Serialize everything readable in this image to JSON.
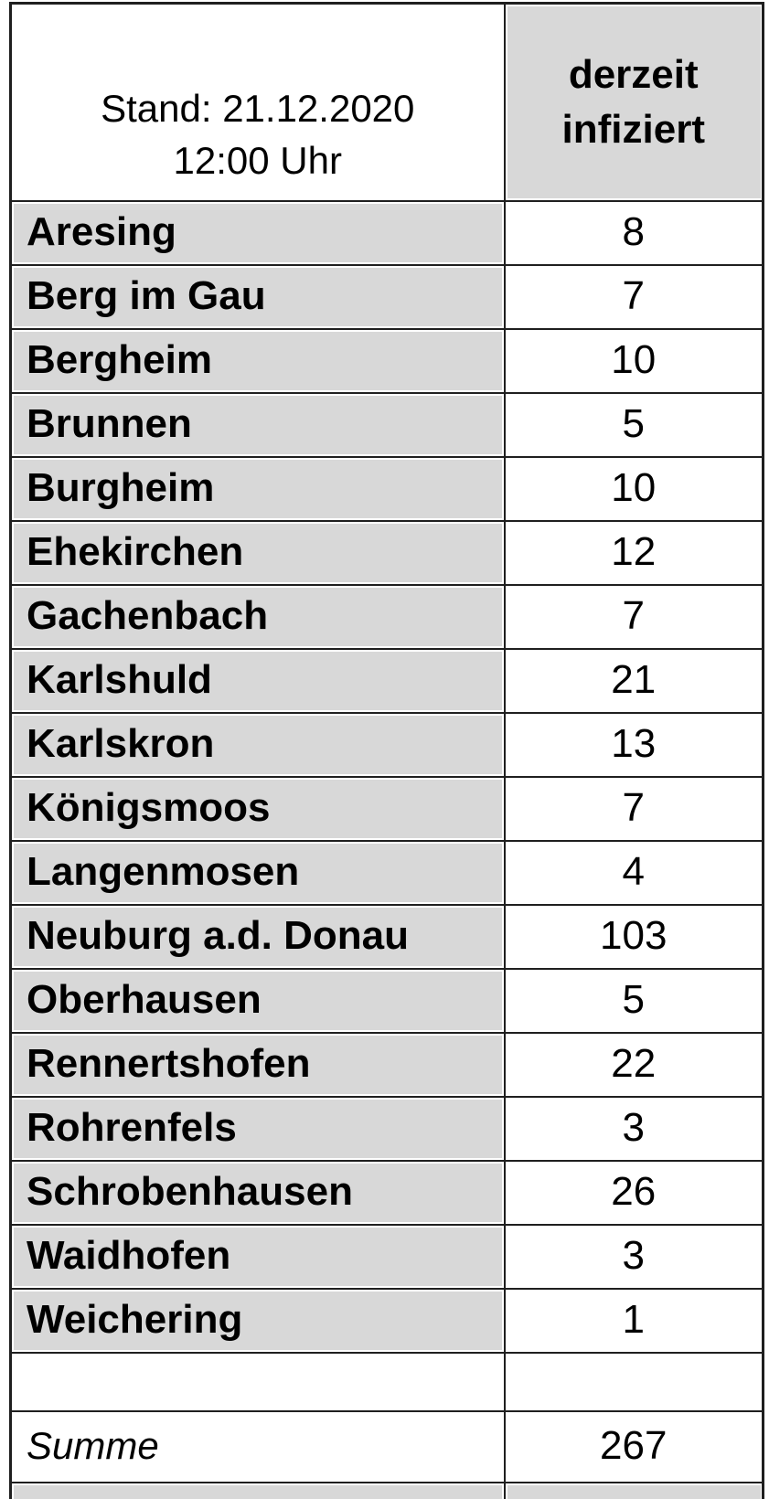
{
  "table": {
    "header": {
      "stand": {
        "line1": "Stand: 21.12.2020",
        "line2": "12:00 Uhr"
      },
      "value_column": {
        "line1": "derzeit",
        "line2": "infiziert"
      }
    },
    "rows": [
      {
        "name": "Aresing",
        "value": 8
      },
      {
        "name": "Berg im Gau",
        "value": 7
      },
      {
        "name": "Bergheim",
        "value": 10
      },
      {
        "name": "Brunnen",
        "value": 5
      },
      {
        "name": "Burgheim",
        "value": 10
      },
      {
        "name": "Ehekirchen",
        "value": 12
      },
      {
        "name": "Gachenbach",
        "value": 7
      },
      {
        "name": "Karlshuld",
        "value": 21
      },
      {
        "name": "Karlskron",
        "value": 13
      },
      {
        "name": "Königsmoos",
        "value": 7
      },
      {
        "name": "Langenmosen",
        "value": 4
      },
      {
        "name": "Neuburg a.d. Donau",
        "value": 103
      },
      {
        "name": "Oberhausen",
        "value": 5
      },
      {
        "name": "Rennertshofen",
        "value": 22
      },
      {
        "name": "Rohrenfels",
        "value": 3
      },
      {
        "name": "Schrobenhausen",
        "value": 26
      },
      {
        "name": "Waidhofen",
        "value": 3
      },
      {
        "name": "Weichering",
        "value": 1
      }
    ],
    "summary": {
      "label": "Summe",
      "value": 267
    },
    "row_count": 18
  },
  "colors": {
    "cell_gray": "#d8d8d8",
    "border": "#1f1f1f",
    "page_bg": "#ffffff"
  }
}
